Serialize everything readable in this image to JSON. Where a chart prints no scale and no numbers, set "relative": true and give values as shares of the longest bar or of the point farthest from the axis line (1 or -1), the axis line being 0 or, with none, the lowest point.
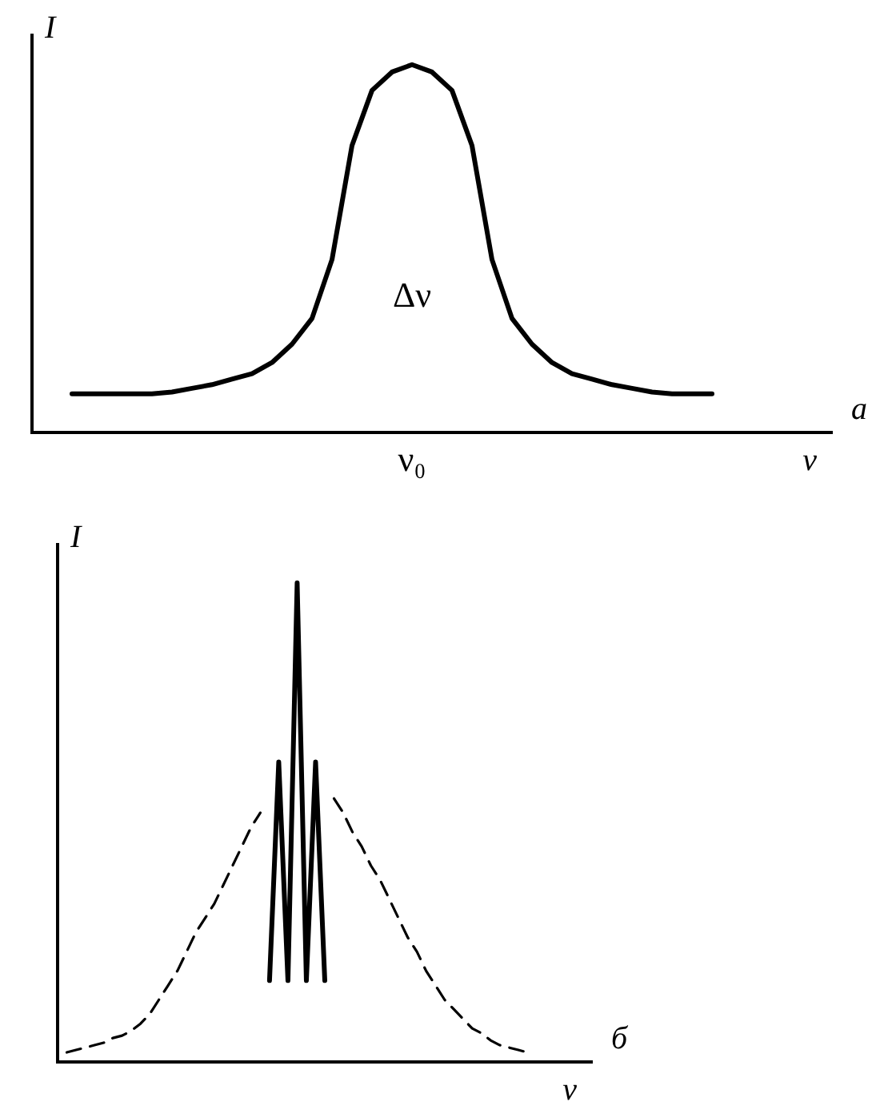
{
  "chart_data": [
    {
      "type": "line",
      "relative": true,
      "xlabel": "ν",
      "ylabel": "I",
      "marker": "none",
      "tick_labels": false,
      "legend": false,
      "categories": [
        null,
        null,
        null,
        null,
        null,
        null,
        null,
        null,
        null,
        null,
        null,
        null,
        null,
        null,
        null,
        null,
        null,
        null,
        null,
        null,
        null,
        null,
        null,
        null,
        null,
        null,
        null,
        null,
        null,
        null,
        null,
        null,
        null,
        null,
        null,
        null,
        null,
        null,
        null,
        null,
        null
      ],
      "series": [
        {
          "color": "#000000",
          "line_style": "solid",
          "values": [
            null,
            null,
            0.105,
            0.105,
            0.105,
            0.105,
            0.105,
            0.11,
            0.12,
            0.13,
            0.145,
            0.16,
            0.19,
            0.24,
            0.31,
            0.47,
            0.78,
            0.93,
            0.98,
            1.0,
            0.98,
            0.93,
            0.78,
            0.47,
            0.31,
            0.24,
            0.19,
            0.16,
            0.145,
            0.13,
            0.12,
            0.11,
            0.105,
            0.105,
            0.105,
            null,
            null,
            null,
            null,
            null,
            null
          ]
        }
      ],
      "annotations": [
        "Δν",
        "ν₀",
        "а"
      ]
    },
    {
      "type": "line",
      "relative": true,
      "xlabel": "ν",
      "ylabel": "I",
      "marker": "none",
      "tick_labels": false,
      "legend": false,
      "categories": [
        null,
        null,
        null,
        null,
        null,
        null,
        null,
        null,
        null,
        null,
        null,
        null,
        null,
        null,
        null,
        null,
        null,
        null,
        null,
        null,
        null,
        null,
        null,
        null,
        null,
        null,
        null,
        null,
        null,
        null,
        null,
        null,
        null,
        null,
        null,
        null,
        null,
        null,
        null,
        null,
        null,
        null,
        null,
        null,
        null,
        null,
        null,
        null,
        null,
        null,
        null,
        null,
        null,
        null,
        null,
        null,
        null,
        null,
        null
      ],
      "series": [
        {
          "color": "#000000",
          "line_style": "dashed",
          "values": [
            null,
            0.02,
            0.025,
            0.03,
            0.035,
            0.04,
            0.05,
            0.055,
            0.065,
            0.08,
            0.1,
            0.13,
            0.16,
            0.19,
            0.23,
            0.27,
            0.3,
            0.33,
            0.37,
            0.41,
            0.45,
            0.49,
            0.52,
            null,
            null,
            null,
            null,
            null,
            null,
            null,
            0.55,
            0.52,
            0.48,
            0.45,
            0.41,
            0.38,
            0.34,
            0.3,
            0.26,
            0.23,
            0.19,
            0.16,
            0.13,
            0.11,
            0.09,
            0.07,
            0.06,
            0.045,
            0.035,
            0.03,
            0.025,
            0.02,
            null,
            null,
            null,
            null,
            null,
            null,
            null
          ]
        },
        {
          "color": "#000000",
          "line_style": "solid",
          "values": [
            null,
            null,
            null,
            null,
            null,
            null,
            null,
            null,
            null,
            null,
            null,
            null,
            null,
            null,
            null,
            null,
            null,
            null,
            null,
            null,
            null,
            null,
            null,
            0.17,
            0.626,
            0.17,
            1.0,
            0.17,
            0.626,
            0.17,
            null,
            null,
            null,
            null,
            null,
            null,
            null,
            null,
            null,
            null,
            null,
            null,
            null,
            null,
            null,
            null,
            null,
            null,
            null,
            null,
            null,
            null,
            null,
            null,
            null,
            null,
            null,
            null,
            null
          ]
        }
      ],
      "annotations": [
        "б"
      ]
    }
  ]
}
